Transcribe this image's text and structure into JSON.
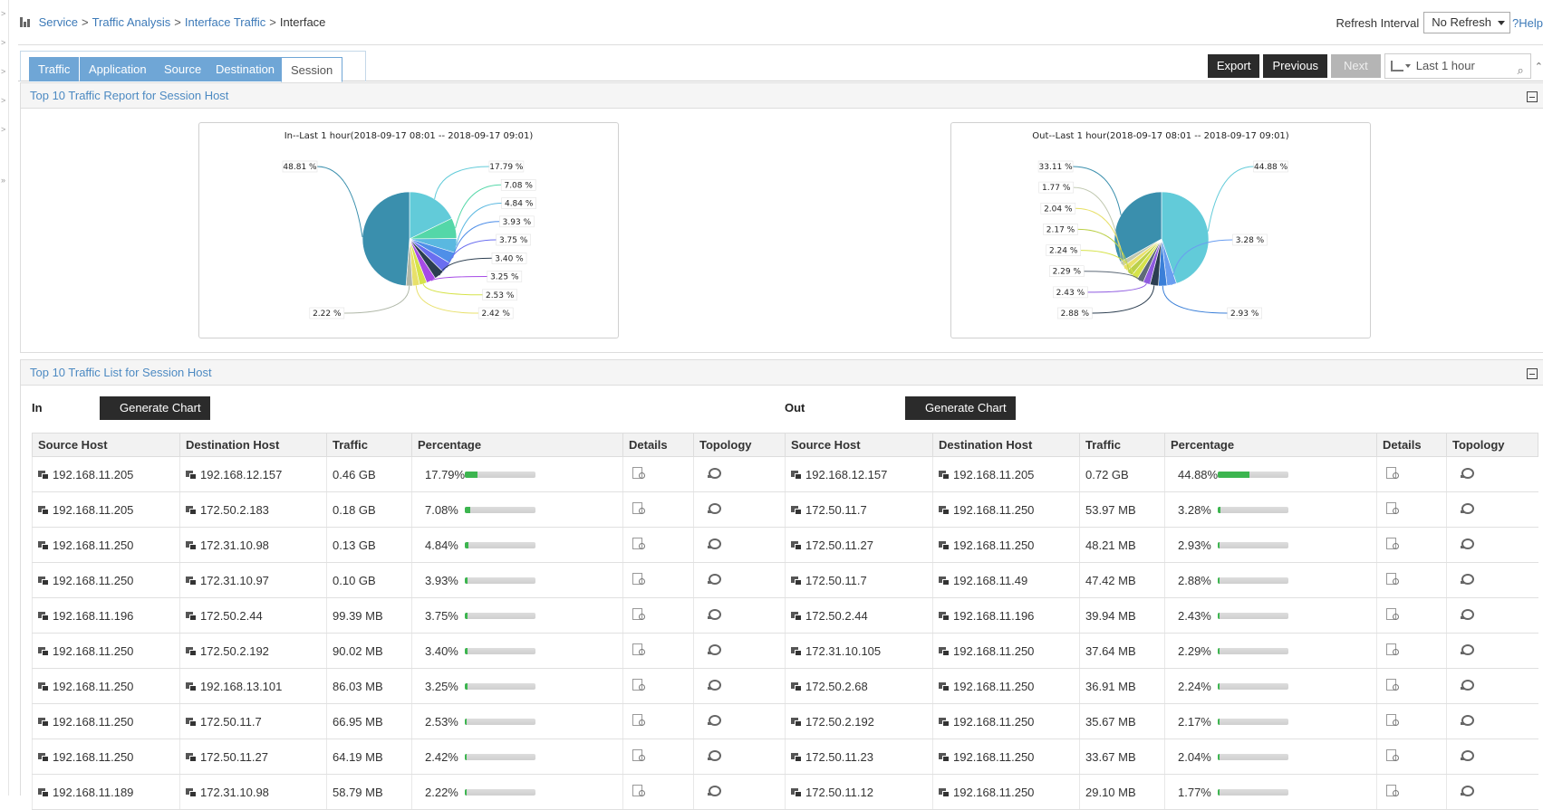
{
  "breadcrumb": {
    "items": [
      "Service",
      "Traffic Analysis",
      "Interface Traffic"
    ],
    "current": "Interface"
  },
  "refresh": {
    "label": "Refresh Interval",
    "value": "No Refresh",
    "help": "Help"
  },
  "tabs": [
    "Traffic",
    "Application",
    "Source",
    "Destination",
    "Session"
  ],
  "active_tab": "Session",
  "toolbar": {
    "export": "Export",
    "previous": "Previous",
    "next": "Next",
    "time_range": "Last 1 hour"
  },
  "report_panel": {
    "title": "Top 10 Traffic Report for Session Host"
  },
  "list_panel": {
    "title": "Top 10 Traffic List for Session Host",
    "in_label": "In",
    "out_label": "Out",
    "generate_chart": "Generate Chart"
  },
  "columns": [
    "Source Host",
    "Destination Host",
    "Traffic",
    "Percentage",
    "Details",
    "Topology"
  ],
  "colors": {
    "tab": "#6fa6d6",
    "link": "#3d7ab8",
    "bar_fill": "#3cb54f"
  },
  "chart_data": [
    {
      "type": "pie",
      "title": "In--Last 1 hour(2018-09-17 08:01 -- 2018-09-17 09:01)",
      "labels": [
        "17.79 %",
        "7.08 %",
        "4.84 %",
        "3.93 %",
        "3.75 %",
        "3.40 %",
        "3.25 %",
        "2.53 %",
        "2.42 %",
        "2.22 %",
        "48.81 %"
      ],
      "values": [
        17.79,
        7.08,
        4.84,
        3.93,
        3.75,
        3.4,
        3.25,
        2.53,
        2.42,
        2.22,
        48.81
      ],
      "colors": [
        "#62cbd9",
        "#54d7a8",
        "#5ab8e0",
        "#4f8fe8",
        "#6a6ef0",
        "#2c3e50",
        "#a64be6",
        "#d6e34a",
        "#e8e06a",
        "#b0b8a8",
        "#3a8fad"
      ]
    },
    {
      "type": "pie",
      "title": "Out--Last 1 hour(2018-09-17 08:01 -- 2018-09-17 09:01)",
      "labels": [
        "44.88 %",
        "3.28 %",
        "2.93 %",
        "2.88 %",
        "2.43 %",
        "2.29 %",
        "2.24 %",
        "2.17 %",
        "2.04 %",
        "1.77 %",
        "33.11 %"
      ],
      "values": [
        44.88,
        3.28,
        2.93,
        2.88,
        2.43,
        2.29,
        2.24,
        2.17,
        2.04,
        1.77,
        33.11
      ],
      "colors": [
        "#62cbd9",
        "#6a9ef0",
        "#3a7fd8",
        "#2c3e50",
        "#8e5ae0",
        "#5e6a78",
        "#d6e34a",
        "#bcd04a",
        "#e8e06a",
        "#c0c8b0",
        "#3a8fad"
      ]
    }
  ],
  "in_rows": [
    {
      "src": "192.168.11.205",
      "dst": "192.168.12.157",
      "traffic": "0.46 GB",
      "pct": "17.79%",
      "frac": 0.1779
    },
    {
      "src": "192.168.11.205",
      "dst": "172.50.2.183",
      "traffic": "0.18 GB",
      "pct": "7.08%",
      "frac": 0.0708
    },
    {
      "src": "192.168.11.250",
      "dst": "172.31.10.98",
      "traffic": "0.13 GB",
      "pct": "4.84%",
      "frac": 0.0484
    },
    {
      "src": "192.168.11.250",
      "dst": "172.31.10.97",
      "traffic": "0.10 GB",
      "pct": "3.93%",
      "frac": 0.0393
    },
    {
      "src": "192.168.11.196",
      "dst": "172.50.2.44",
      "traffic": "99.39 MB",
      "pct": "3.75%",
      "frac": 0.0375
    },
    {
      "src": "192.168.11.250",
      "dst": "172.50.2.192",
      "traffic": "90.02 MB",
      "pct": "3.40%",
      "frac": 0.034
    },
    {
      "src": "192.168.11.250",
      "dst": "192.168.13.101",
      "traffic": "86.03 MB",
      "pct": "3.25%",
      "frac": 0.0325
    },
    {
      "src": "192.168.11.250",
      "dst": "172.50.11.7",
      "traffic": "66.95 MB",
      "pct": "2.53%",
      "frac": 0.0253
    },
    {
      "src": "192.168.11.250",
      "dst": "172.50.11.27",
      "traffic": "64.19 MB",
      "pct": "2.42%",
      "frac": 0.0242
    },
    {
      "src": "192.168.11.189",
      "dst": "172.31.10.98",
      "traffic": "58.79 MB",
      "pct": "2.22%",
      "frac": 0.0222
    }
  ],
  "out_rows": [
    {
      "src": "192.168.12.157",
      "dst": "192.168.11.205",
      "traffic": "0.72 GB",
      "pct": "44.88%",
      "frac": 0.4488
    },
    {
      "src": "172.50.11.7",
      "dst": "192.168.11.250",
      "traffic": "53.97 MB",
      "pct": "3.28%",
      "frac": 0.0328
    },
    {
      "src": "172.50.11.27",
      "dst": "192.168.11.250",
      "traffic": "48.21 MB",
      "pct": "2.93%",
      "frac": 0.0293
    },
    {
      "src": "172.50.11.7",
      "dst": "192.168.11.49",
      "traffic": "47.42 MB",
      "pct": "2.88%",
      "frac": 0.0288
    },
    {
      "src": "172.50.2.44",
      "dst": "192.168.11.196",
      "traffic": "39.94 MB",
      "pct": "2.43%",
      "frac": 0.0243
    },
    {
      "src": "172.31.10.105",
      "dst": "192.168.11.250",
      "traffic": "37.64 MB",
      "pct": "2.29%",
      "frac": 0.0229
    },
    {
      "src": "172.50.2.68",
      "dst": "192.168.11.250",
      "traffic": "36.91 MB",
      "pct": "2.24%",
      "frac": 0.0224
    },
    {
      "src": "172.50.2.192",
      "dst": "192.168.11.250",
      "traffic": "35.67 MB",
      "pct": "2.17%",
      "frac": 0.0217
    },
    {
      "src": "172.50.11.23",
      "dst": "192.168.11.250",
      "traffic": "33.67 MB",
      "pct": "2.04%",
      "frac": 0.0204
    },
    {
      "src": "172.50.11.12",
      "dst": "192.168.11.250",
      "traffic": "29.10 MB",
      "pct": "1.77%",
      "frac": 0.0177
    }
  ]
}
